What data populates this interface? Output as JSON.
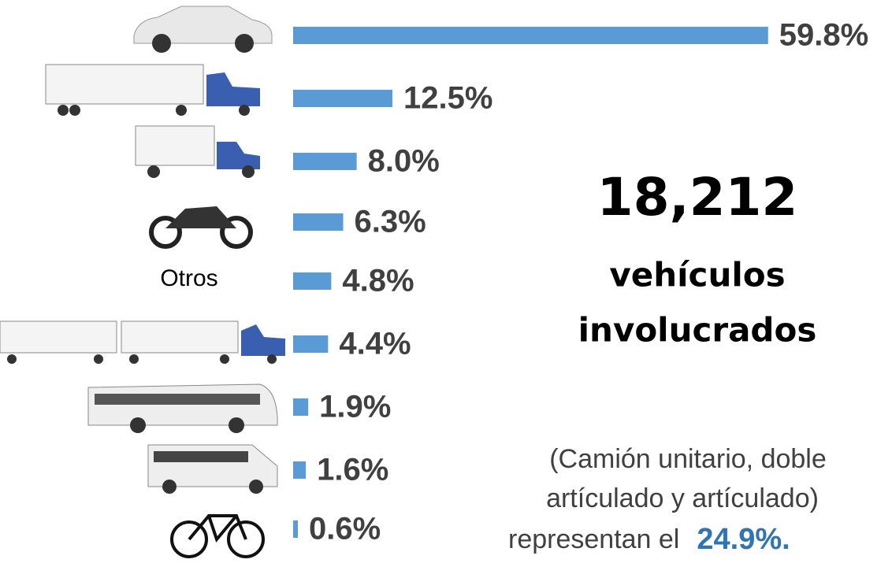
{
  "chart_data": {
    "type": "bar",
    "orientation": "horizontal",
    "categories": [
      null,
      null,
      null,
      null,
      "Otros",
      null,
      null,
      null,
      null
    ],
    "values": [
      59.8,
      12.5,
      8.0,
      6.3,
      4.8,
      4.4,
      1.9,
      1.6,
      0.6
    ],
    "value_labels": [
      "59.8%",
      "12.5%",
      "8.0%",
      "6.3%",
      "4.8%",
      "4.4%",
      "1.9%",
      "1.6%",
      "0.6%"
    ],
    "color": "#5b9bd5",
    "annotations": {
      "total": "18,212",
      "line1": "vehículos",
      "line2": "involucrados",
      "note1": "(Camión unitario,  doble",
      "note2": "artículado y artículado)",
      "note3": "representan el",
      "note_value": "24.9%."
    }
  }
}
